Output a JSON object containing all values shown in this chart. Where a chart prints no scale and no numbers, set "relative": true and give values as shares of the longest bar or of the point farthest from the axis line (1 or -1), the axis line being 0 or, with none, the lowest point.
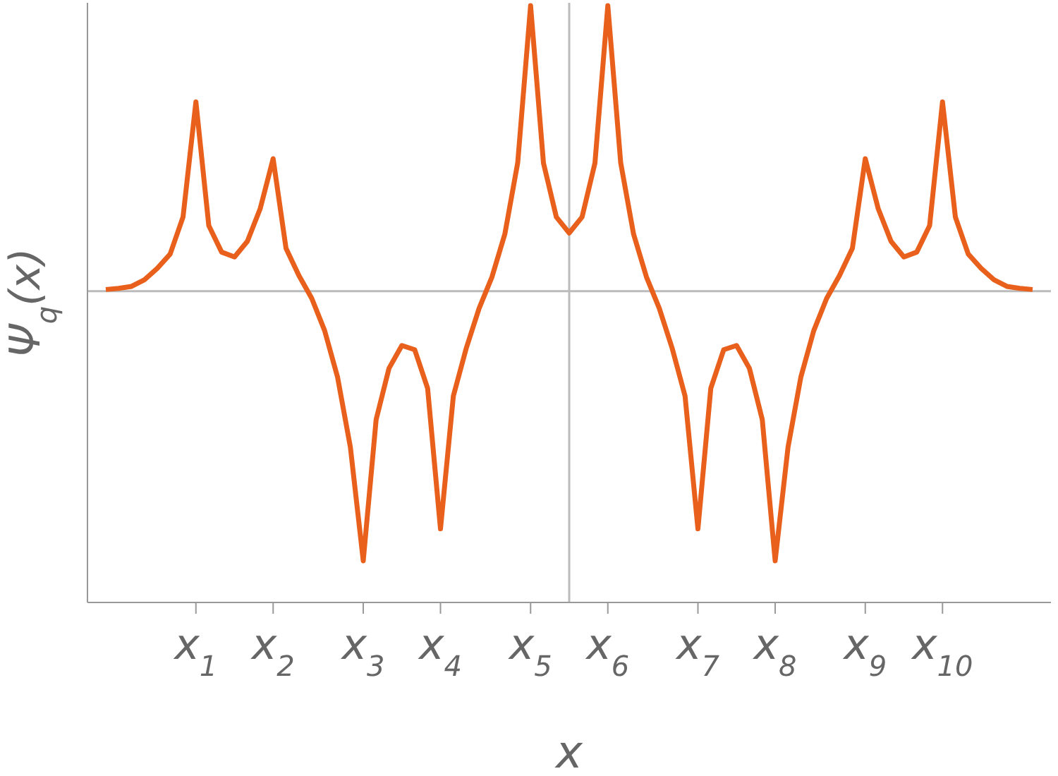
{
  "chart_data": {
    "type": "line",
    "relative": true,
    "xlabel": "x",
    "ylabel": "Ψ$_{q}$(x)",
    "categories": [
      null,
      null,
      null,
      null,
      null,
      null,
      null,
      "x$_{1}$",
      null,
      null,
      null,
      null,
      null,
      "x$_{2}$",
      null,
      null,
      null,
      null,
      null,
      null,
      "x$_{3}$",
      null,
      null,
      null,
      null,
      null,
      "x$_{4}$",
      null,
      null,
      null,
      null,
      null,
      null,
      "x$_{5}$",
      null,
      null,
      null,
      null,
      null,
      "x$_{6}$",
      null,
      null,
      null,
      null,
      null,
      null,
      "x$_{7}$",
      null,
      null,
      null,
      null,
      null,
      "x$_{8}$",
      null,
      null,
      null,
      null,
      null,
      null,
      "x$_{9}$",
      null,
      null,
      null,
      null,
      null,
      "x$_{10}$",
      null,
      null,
      null,
      null,
      null,
      null,
      null
    ],
    "tick_labels": "x",
    "marker": "none",
    "line_style": "solid",
    "ref_lines": [
      {
        "axis": "y",
        "value": 0,
        "color": "#bbbbbb"
      },
      {
        "axis": "x",
        "color": "#bbbbbb"
      }
    ],
    "series": [
      {
        "color": "#e8601c",
        "values": [
          0.006,
          0.01,
          0.017,
          0.04,
          0.08,
          0.13,
          0.26,
          0.663,
          0.23,
          0.137,
          0.12,
          0.175,
          0.29,
          0.464,
          0.15,
          0.055,
          -0.025,
          -0.138,
          -0.3,
          -0.546,
          -0.944,
          -0.45,
          -0.27,
          -0.19,
          -0.205,
          -0.34,
          -0.832,
          -0.367,
          -0.2,
          -0.06,
          0.05,
          0.2,
          0.45,
          1,
          0.449,
          0.26,
          0.204,
          0.26,
          0.449,
          1,
          0.45,
          0.2,
          0.05,
          -0.06,
          -0.2,
          -0.367,
          -0.832,
          -0.34,
          -0.205,
          -0.19,
          -0.27,
          -0.45,
          -0.944,
          -0.546,
          -0.3,
          -0.138,
          -0.025,
          0.055,
          0.15,
          0.464,
          0.29,
          0.175,
          0.12,
          0.137,
          0.23,
          0.663,
          0.26,
          0.13,
          0.08,
          0.04,
          0.017,
          0.01,
          0.006
        ]
      }
    ]
  }
}
